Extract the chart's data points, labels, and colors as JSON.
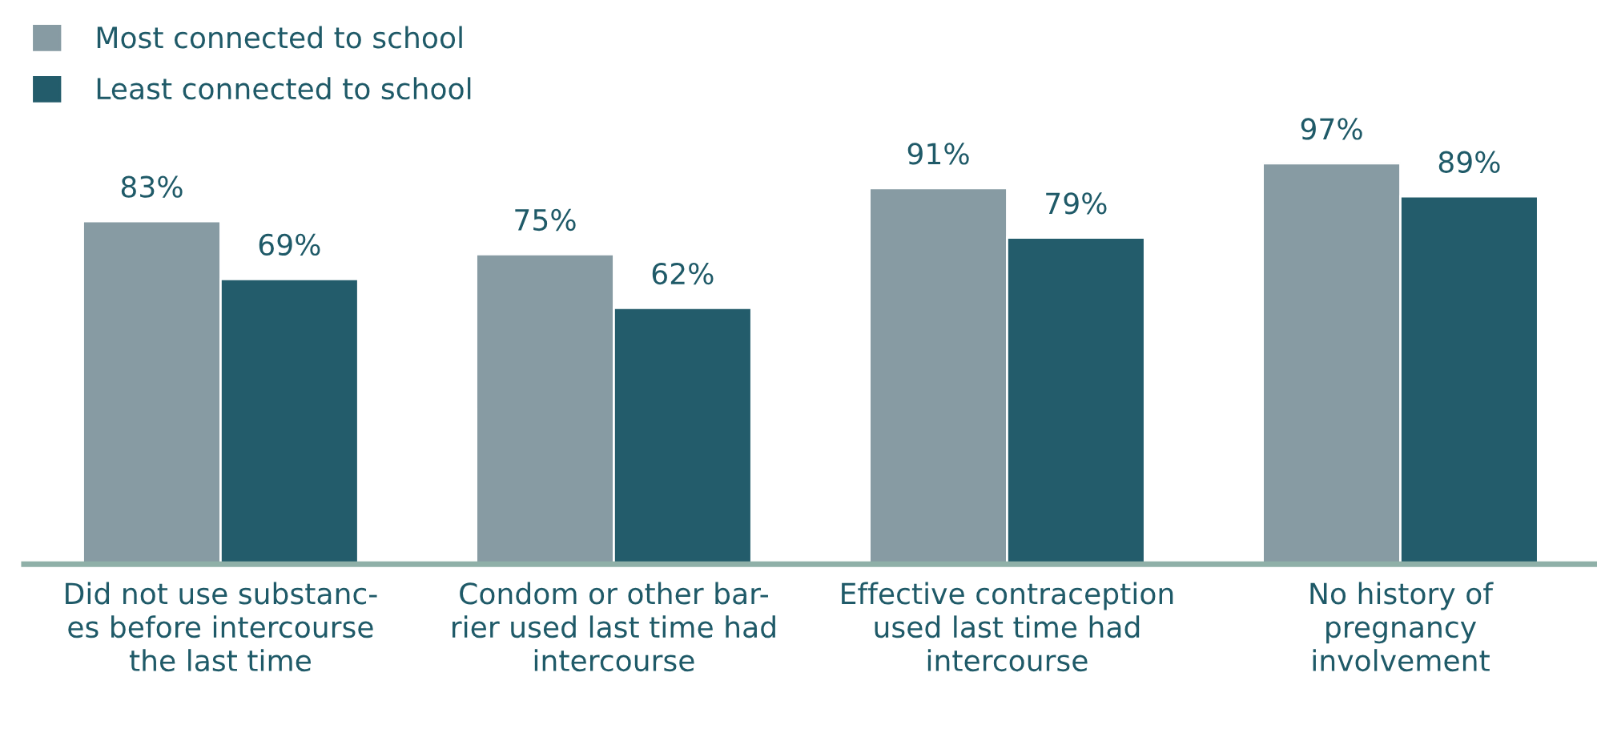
{
  "chart_data": {
    "type": "bar",
    "categories": [
      "Did not use substanc-\nes before intercourse\nthe last time",
      "Condom or other bar-\nrier used last time had\nintercourse",
      "Effective contraception\nused last time had\nintercourse",
      "No history of\npregnancy\ninvolvement"
    ],
    "series": [
      {
        "name": "Most connected to school",
        "color": "#879ba3",
        "values": [
          83,
          75,
          91,
          97
        ],
        "value_labels": [
          "83%",
          "75%",
          "91%",
          "97%"
        ]
      },
      {
        "name": "Least connected to school",
        "color": "#235c6b",
        "values": [
          69,
          62,
          79,
          89
        ],
        "value_labels": [
          "69%",
          "62%",
          "79%",
          "89%"
        ]
      }
    ],
    "legend": "top left",
    "grid": false
  }
}
